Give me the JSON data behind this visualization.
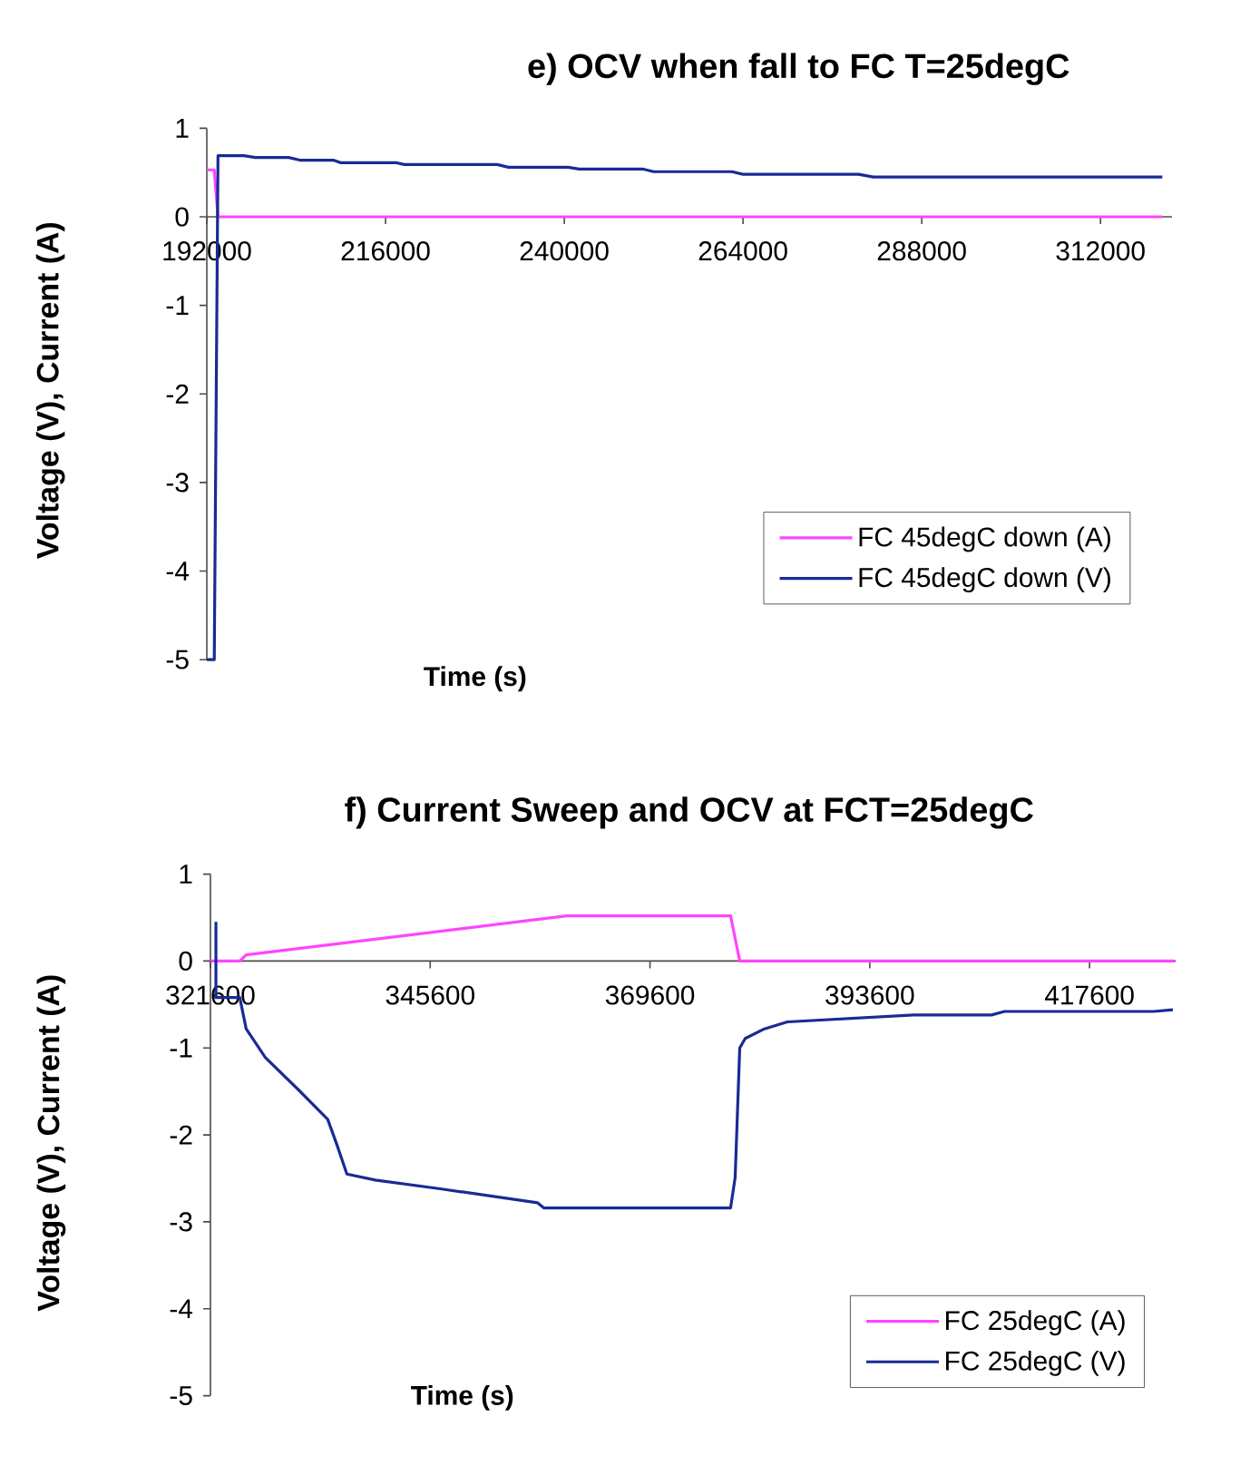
{
  "chart_data": [
    {
      "type": "line",
      "title": "e) OCV when fall to FC T=25degC",
      "xlabel": "Time (s)",
      "ylabel": "Voltage (V), Current (A)",
      "xlim": [
        192000,
        321600
      ],
      "ylim": [
        -5,
        1
      ],
      "xticks": [
        192000,
        216000,
        240000,
        264000,
        288000,
        312000
      ],
      "yticks": [
        -5,
        -4,
        -3,
        -2,
        -1,
        0,
        1
      ],
      "legend": "bottom right",
      "marker": "none",
      "line_style": "solid",
      "grid": false,
      "series": [
        {
          "name": "FC 45degC down (A)",
          "color": "#ff44ff",
          "x": [
            192000,
            193000,
            193500,
            320300
          ],
          "values": [
            0.53,
            0.53,
            0,
            0
          ]
        },
        {
          "name": "FC 45degC down (V)",
          "color": "#1a2a96",
          "x": [
            192000,
            193000,
            193500,
            197000,
            198500,
            203000,
            204500,
            209000,
            210000,
            217500,
            218500,
            231000,
            232500,
            240500,
            242000,
            250500,
            252000,
            262500,
            264000,
            279500,
            281500,
            320300
          ],
          "values": [
            -5,
            -5,
            0.69,
            0.69,
            0.67,
            0.67,
            0.64,
            0.64,
            0.61,
            0.61,
            0.59,
            0.59,
            0.56,
            0.56,
            0.54,
            0.54,
            0.51,
            0.51,
            0.48,
            0.48,
            0.45,
            0.45
          ]
        }
      ]
    },
    {
      "type": "line",
      "title": "f) Current Sweep and OCV at FCT=25degC",
      "xlabel": "Time (s)",
      "ylabel": "Voltage (V), Current (A)",
      "xlim": [
        321600,
        427000
      ],
      "ylim": [
        -5,
        1
      ],
      "xticks": [
        321600,
        345600,
        369600,
        393600,
        417600
      ],
      "yticks": [
        -5,
        -4,
        -3,
        -2,
        -1,
        0,
        1
      ],
      "legend": "bottom right",
      "marker": "none",
      "line_style": "solid",
      "grid": false,
      "series": [
        {
          "name": "FC 25degC (A)",
          "color": "#ff44ff",
          "x": [
            321600,
            324800,
            325500,
            360500,
            378400,
            379400,
            426900
          ],
          "values": [
            0,
            0,
            0.07,
            0.52,
            0.52,
            0,
            0
          ]
        },
        {
          "name": "FC 25degC (V)",
          "color": "#1a2a96",
          "x": [
            322200,
            322200,
            324800,
            325500,
            327600,
            331200,
            334400,
            335400,
            336500,
            339600,
            346700,
            357300,
            358000,
            378400,
            378900,
            379400,
            380000,
            382100,
            384600,
            398400,
            406900,
            408300,
            424600,
            426700
          ],
          "values": [
            0.45,
            -0.42,
            -0.42,
            -0.78,
            -1.11,
            -1.48,
            -1.82,
            -2.11,
            -2.45,
            -2.52,
            -2.62,
            -2.78,
            -2.84,
            -2.84,
            -2.49,
            -1.0,
            -0.89,
            -0.78,
            -0.7,
            -0.62,
            -0.62,
            -0.58,
            -0.58,
            -0.56
          ]
        }
      ]
    }
  ]
}
